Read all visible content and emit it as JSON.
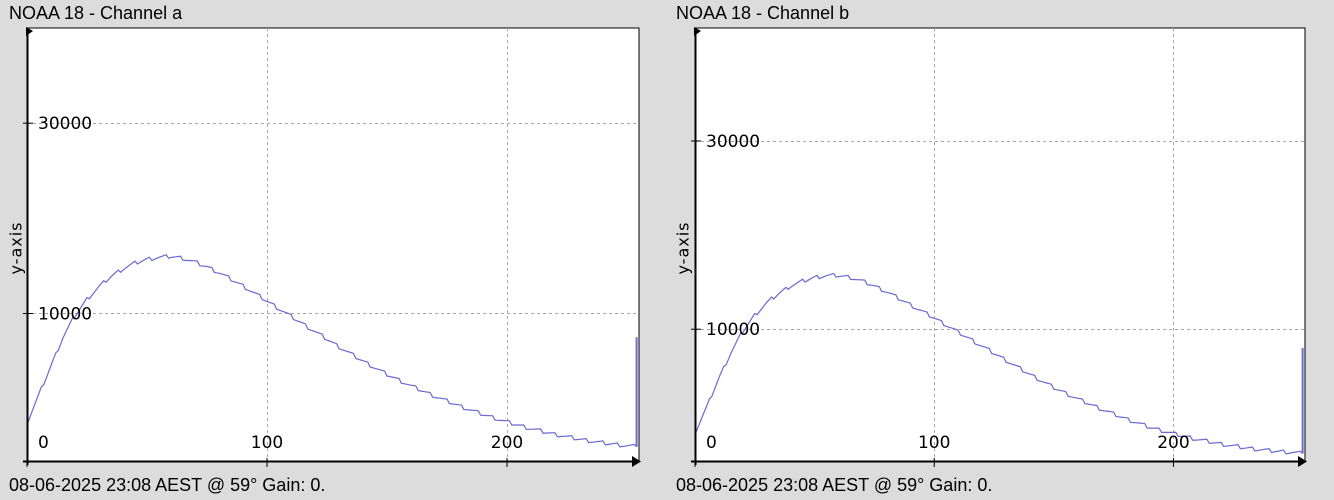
{
  "chart_data": [
    {
      "type": "line",
      "title": "NOAA 18 - Channel a",
      "xlabel": "",
      "ylabel": "y-axis",
      "xlim": [
        0,
        255
      ],
      "ylim": [
        -5500,
        40000
      ],
      "x_ticks": [
        0,
        100,
        200
      ],
      "y_ticks": [
        10000,
        30000
      ],
      "x_tick_labels": [
        "0",
        "100",
        "200"
      ],
      "y_tick_labels": [
        "10000",
        "30000"
      ],
      "grid": true,
      "line_color": "#6a6ad0",
      "series": [
        {
          "x": [
            0,
            5,
            10,
            15,
            20,
            25,
            30,
            35,
            40,
            45,
            50,
            55,
            60,
            65,
            70,
            75,
            80,
            85,
            90,
            95,
            100,
            110,
            120,
            130,
            140,
            150,
            160,
            170,
            180,
            190,
            200,
            210,
            220,
            230,
            240,
            250,
            254
          ],
          "y": [
            -1500,
            1500,
            4500,
            7500,
            9800,
            11500,
            12800,
            13900,
            14700,
            15300,
            15700,
            15900,
            16000,
            15800,
            15400,
            14900,
            14300,
            13600,
            12900,
            12100,
            11300,
            9700,
            8100,
            6500,
            5000,
            3600,
            2400,
            1300,
            300,
            -600,
            -1400,
            -2100,
            -2700,
            -3200,
            -3600,
            -3900,
            -4000
          ]
        }
      ],
      "end_spike": {
        "x": 254,
        "y": 7500
      },
      "footer": "08-06-2025 23:08 AEST @ 59° Gain: 0."
    },
    {
      "type": "line",
      "title": "NOAA 18 - Channel b",
      "xlabel": "",
      "ylabel": "y-axis",
      "xlim": [
        0,
        255
      ],
      "ylim": [
        -4000,
        42000
      ],
      "x_ticks": [
        0,
        100,
        200
      ],
      "y_ticks": [
        10000,
        30000
      ],
      "x_tick_labels": [
        "0",
        "100",
        "200"
      ],
      "y_tick_labels": [
        "10000",
        "30000"
      ],
      "grid": true,
      "line_color": "#6a6ad0",
      "series": [
        {
          "x": [
            0,
            5,
            10,
            15,
            20,
            25,
            30,
            35,
            40,
            45,
            50,
            55,
            60,
            65,
            70,
            75,
            80,
            85,
            90,
            95,
            100,
            110,
            120,
            130,
            140,
            150,
            160,
            170,
            180,
            190,
            200,
            210,
            220,
            230,
            240,
            250,
            254
          ],
          "y": [
            -1000,
            1800,
            4800,
            7500,
            9800,
            11500,
            12800,
            13800,
            14600,
            15100,
            15500,
            15700,
            15700,
            15500,
            15100,
            14600,
            14000,
            13300,
            12600,
            11900,
            11200,
            9700,
            8200,
            6700,
            5200,
            3800,
            2600,
            1500,
            500,
            -400,
            -1100,
            -1700,
            -2200,
            -2600,
            -2900,
            -3100,
            -3200
          ]
        }
      ],
      "end_spike": {
        "x": 254,
        "y": 8000
      },
      "footer": "08-06-2025 23:08 AEST @ 59° Gain: 0."
    }
  ]
}
